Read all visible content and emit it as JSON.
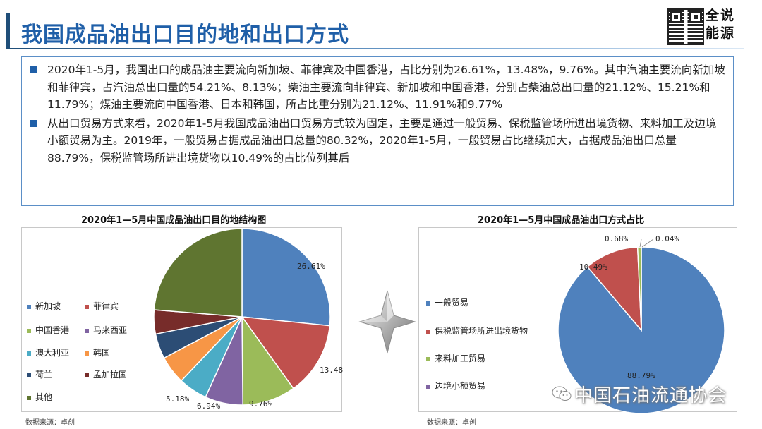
{
  "header": {
    "title": "我国成品油出口目的地和出口方式",
    "brand_line1": "全说",
    "brand_line2": "能源"
  },
  "paragraphs": [
    "2020年1-5月，我国出口的成品油主要流向新加坡、菲律宾及中国香港，占比分别为26.61%，13.48%，9.76%。其中汽油主要流向新加坡和菲律宾，占汽油总出口量的54.21%、8.13%；柴油主要流向菲律宾、新加坡和中国香港，分别占柴油总出口量的21.12%、15.21%和11.79%；煤油主要流向中国香港、日本和韩国，所占比重分别为21.12%、11.91%和9.77%",
    "从出口贸易方式来看，2020年1-5月我国成品油出口贸易方式较为固定，主要是通过一般贸易、保税监管场所进出境货物、来料加工及边境小额贸易为主。2019年，一般贸易占据成品油出口总量的80.32%，2020年1-5月，一般贸易占比继续加大，占据成品油出口总量88.79%，保税监管场所进出境货物以10.49%的占比位列其后"
  ],
  "chart_data": [
    {
      "type": "pie",
      "title": "2020年1—5月中国成品油出口目的地结构图",
      "source": "数据来源：卓创",
      "legend_position": "left",
      "slices": [
        {
          "name": "新加坡",
          "value": 26.61,
          "label": "26.61%",
          "color": "#4f81bd"
        },
        {
          "name": "菲律宾",
          "value": 13.48,
          "label": "13.48%",
          "color": "#c0504d"
        },
        {
          "name": "中国香港",
          "value": 9.76,
          "label": "9.76%",
          "color": "#9bbb59"
        },
        {
          "name": "马来西亚",
          "value": 6.94,
          "label": "6.94%",
          "color": "#8064a2"
        },
        {
          "name": "澳大利亚",
          "value": 5.3,
          "label": "",
          "color": "#4bacc6"
        },
        {
          "name": "韩国",
          "value": 5.18,
          "label": "5.18%",
          "color": "#f79646"
        },
        {
          "name": "荷兰",
          "value": 4.6,
          "label": "",
          "color": "#2c4d75"
        },
        {
          "name": "孟加拉国",
          "value": 4.4,
          "label": "",
          "color": "#772c2a"
        },
        {
          "name": "其他",
          "value": 23.73,
          "label": "",
          "color": "#5f7530"
        }
      ]
    },
    {
      "type": "pie",
      "title": "2020年1—5月中国成品油出口方式占比",
      "source": "数据来源：卓创",
      "legend_position": "left",
      "slices": [
        {
          "name": "一般贸易",
          "value": 88.79,
          "label": "88.79%",
          "color": "#4f81bd"
        },
        {
          "name": "保税监管场所进出境货物",
          "value": 10.49,
          "label": "10.49%",
          "color": "#c0504d"
        },
        {
          "name": "来料加工贸易",
          "value": 0.68,
          "label": "0.68%",
          "color": "#9bbb59"
        },
        {
          "name": "边境小额贸易",
          "value": 0.04,
          "label": "0.04%",
          "color": "#8064a2"
        }
      ]
    }
  ],
  "watermark": "中国石油流通协会"
}
